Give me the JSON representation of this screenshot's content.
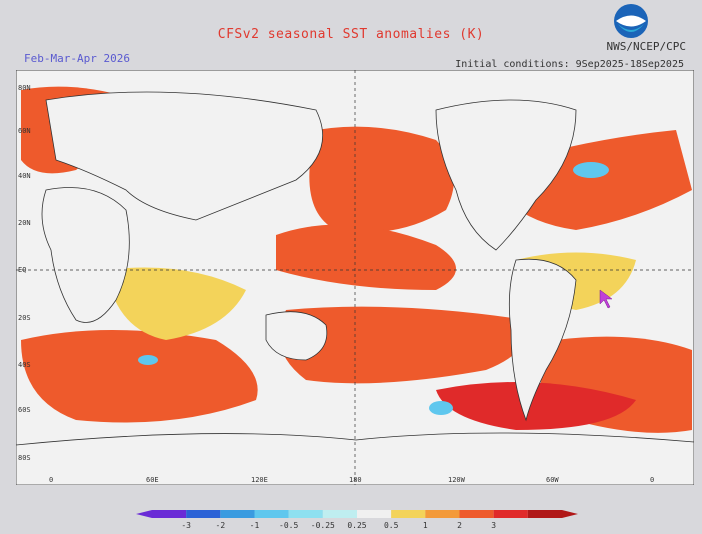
{
  "title": "CFSv2 seasonal SST anomalies (K)",
  "period": "Feb-Mar-Apr 2026",
  "agency": "NWS/NCEP/CPC",
  "initial_conditions": "Initial conditions: 9Sep2025-18Sep2025",
  "logo_name": "noaa-logo",
  "latitude_labels": [
    "80N",
    "60N",
    "40N",
    "20N",
    "EQ",
    "20S",
    "40S",
    "60S",
    "80S"
  ],
  "longitude_labels": [
    "0",
    "60E",
    "120E",
    "180",
    "120W",
    "60W",
    "0"
  ],
  "colorbar": {
    "ticks": [
      "-3",
      "-2",
      "-1",
      "-0.5",
      "-0.25",
      "0.25",
      "0.5",
      "1",
      "2",
      "3"
    ],
    "colors": [
      "#6a2bd6",
      "#2b62d6",
      "#3a9be0",
      "#5fc7ee",
      "#8ee0f0",
      "#bfeef0",
      "#f0f0f0",
      "#f3d35a",
      "#f39a3a",
      "#ee5a2c",
      "#e02a2a",
      "#b01818"
    ]
  },
  "colors": {
    "background": "#d8d8dc",
    "map_bg": "#f2f2f2",
    "title": "#e0392f",
    "period": "#5a5ad0"
  }
}
